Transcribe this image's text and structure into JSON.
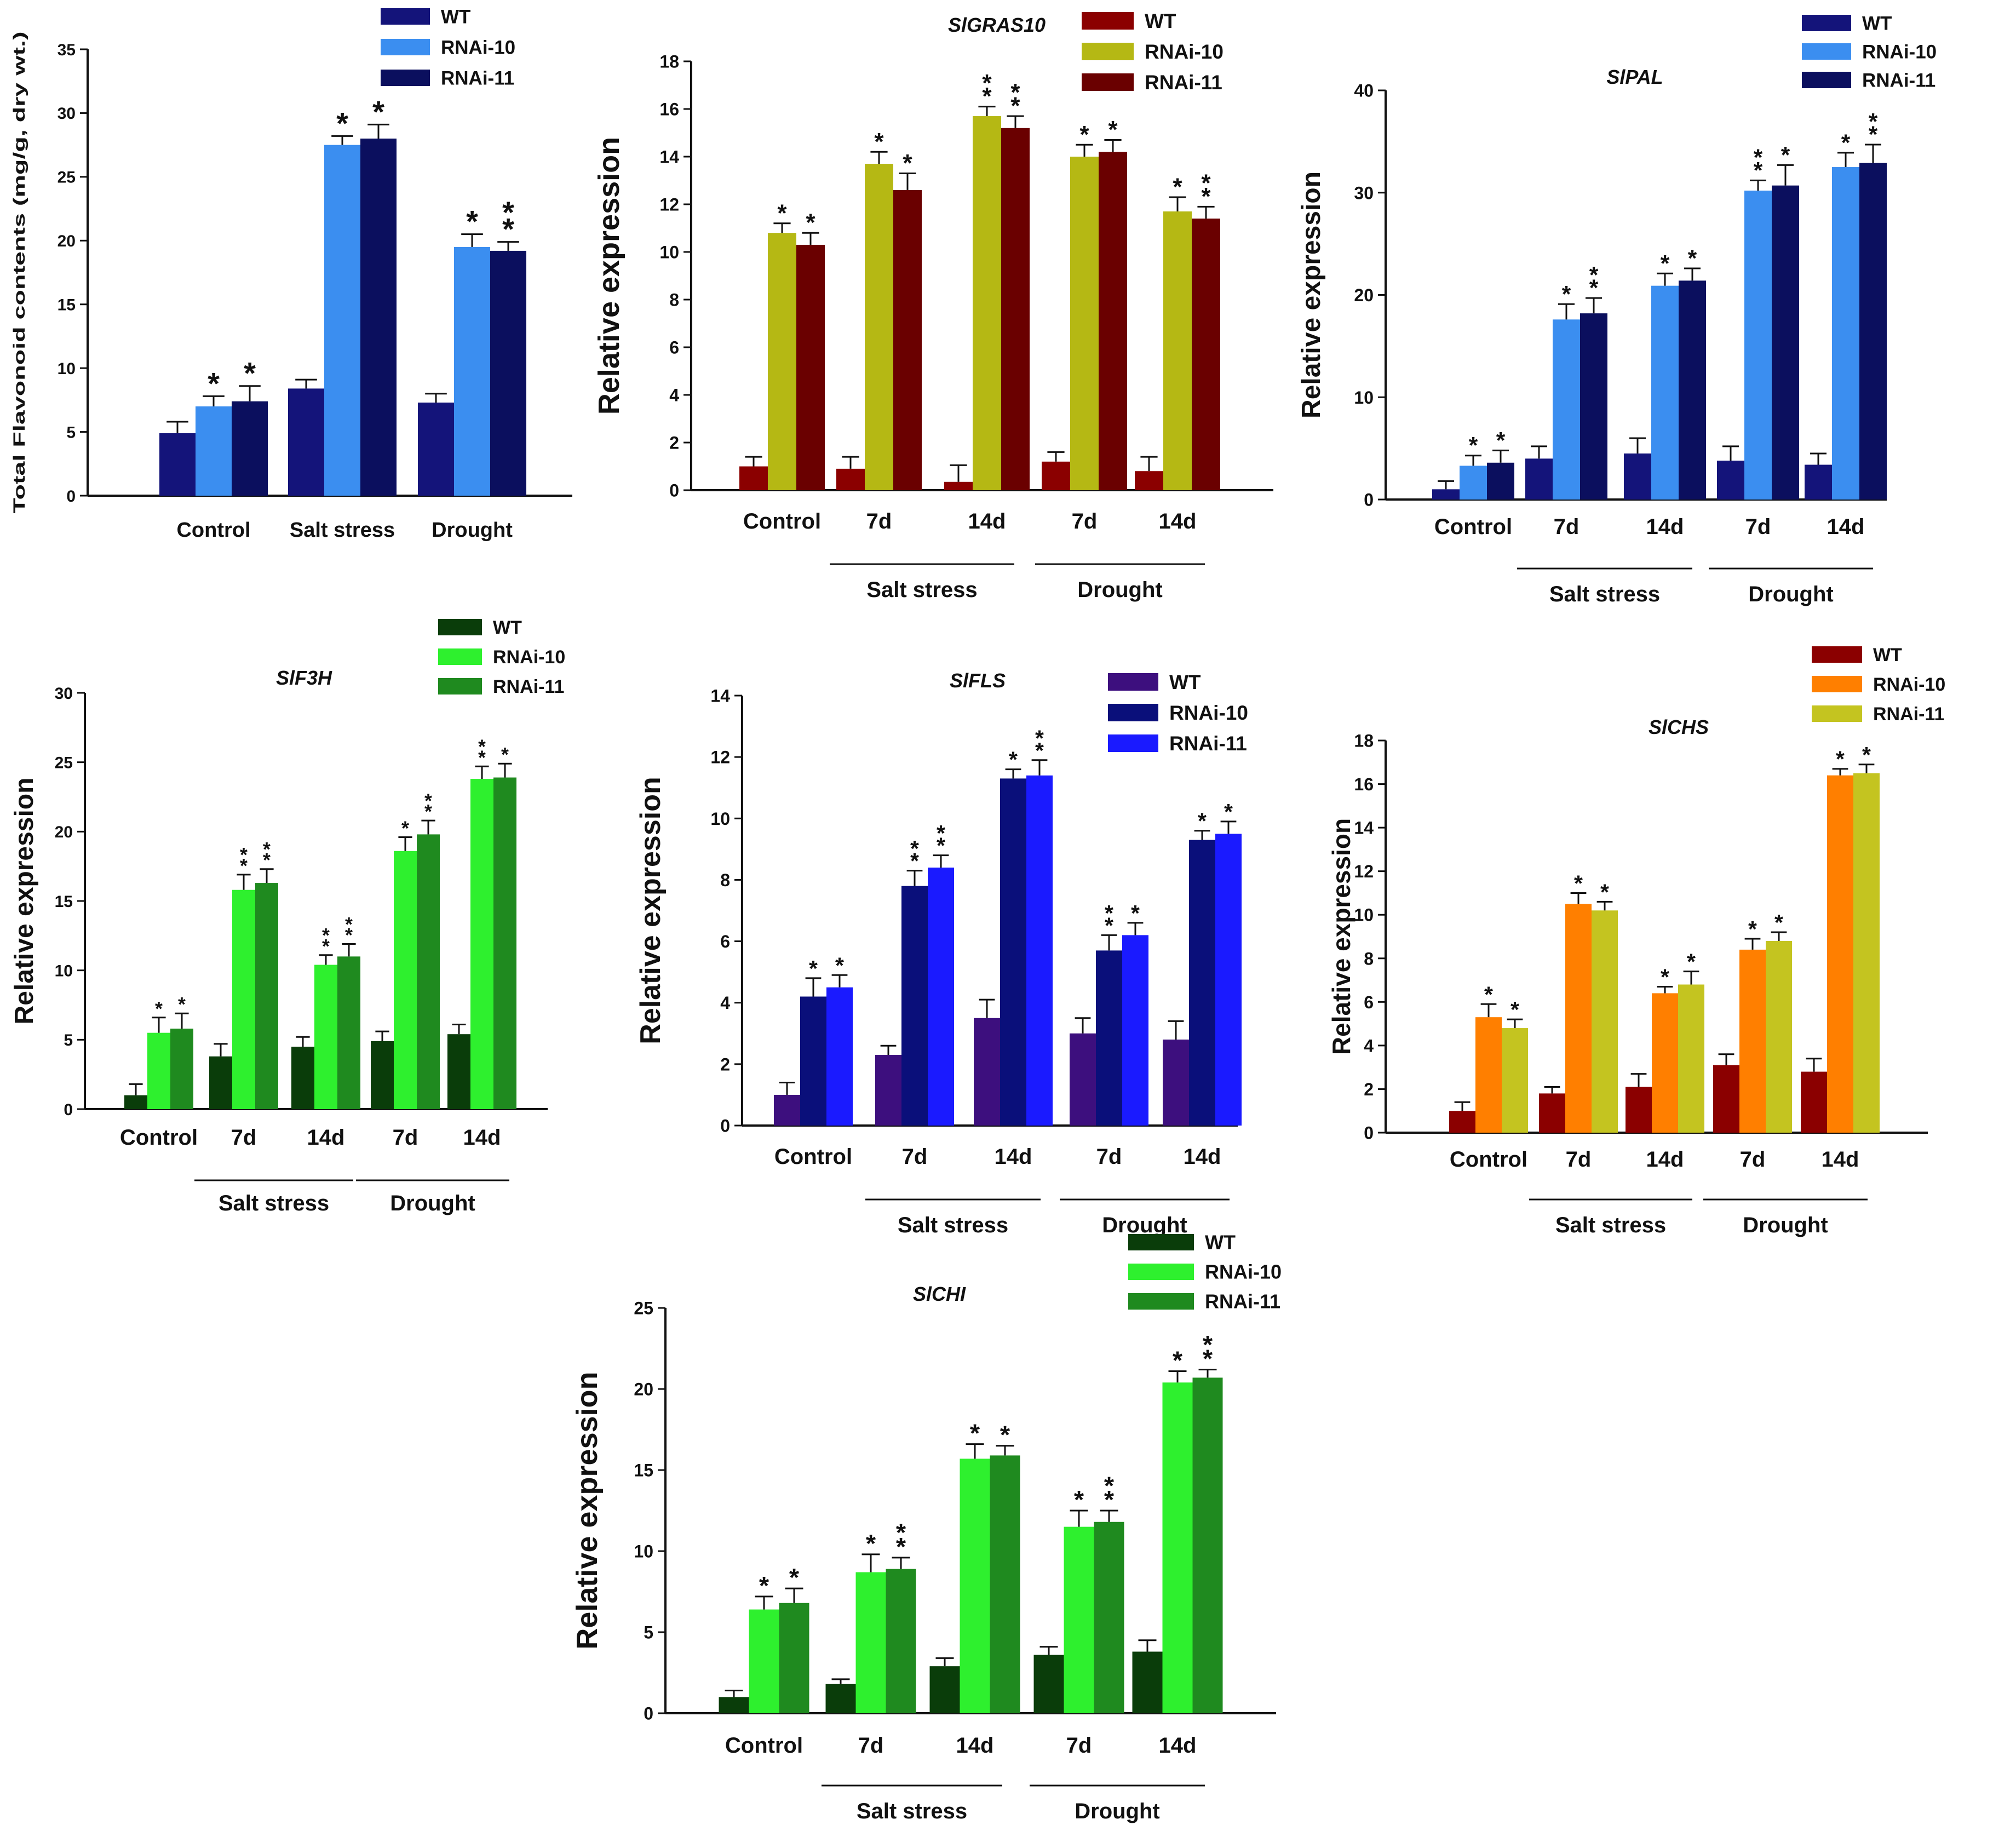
{
  "colors": {
    "blue": [
      "#14147a",
      "#3b8ef0",
      "#0b0f5e"
    ],
    "red": [
      "#8b0000",
      "#b5b814",
      "#6a0000"
    ],
    "green": [
      "#0a3d0a",
      "#2ef02e",
      "#1f8a1f"
    ],
    "fls": [
      "#3d0f7e",
      "#0a0f7a",
      "#1a1aff"
    ],
    "chs": [
      "#8b0000",
      "#ff7f00",
      "#c4c420"
    ]
  },
  "chart_data": [
    {
      "id": "flavonoid",
      "type": "bar",
      "title": "",
      "ylabel": "Total Flavonoid contents (mg/g, dry wt.)",
      "ylim": [
        0,
        35
      ],
      "yticks": [
        "0",
        "5",
        "10",
        "15",
        "20",
        "25",
        "30",
        "35"
      ],
      "categories": [
        "Control",
        "Salt stress",
        "Drought"
      ],
      "groups": [],
      "legend": [
        "WT",
        "RNAi-10",
        "RNAi-11"
      ],
      "palette": "blue",
      "series": [
        {
          "name": "WT",
          "values": [
            4.9,
            8.4,
            7.3
          ],
          "errors": [
            0.9,
            0.7,
            0.7
          ],
          "stars": [
            "",
            "",
            ""
          ]
        },
        {
          "name": "RNAi-10",
          "values": [
            7.0,
            27.5,
            19.5
          ],
          "errors": [
            0.8,
            0.7,
            1.0
          ],
          "stars": [
            "*",
            "*",
            "*"
          ]
        },
        {
          "name": "RNAi-11",
          "values": [
            7.4,
            28.0,
            19.2
          ],
          "errors": [
            1.2,
            1.1,
            0.7
          ],
          "stars": [
            "*",
            "*",
            "**"
          ]
        }
      ]
    },
    {
      "id": "slgras10",
      "type": "bar",
      "title": "SlGRAS10",
      "ylabel": "Relative expression",
      "ylim": [
        0,
        18
      ],
      "yticks": [
        "0",
        "2",
        "4",
        "6",
        "8",
        "10",
        "12",
        "14",
        "16",
        "18"
      ],
      "categories": [
        "Control",
        "7d",
        "14d",
        "7d",
        "14d"
      ],
      "groups": [
        {
          "label": "Salt stress",
          "from": 1,
          "to": 2
        },
        {
          "label": "Drought",
          "from": 3,
          "to": 4
        }
      ],
      "legend": [
        "WT",
        "RNAi-10",
        "RNAi-11"
      ],
      "palette": "red",
      "series": [
        {
          "name": "WT",
          "values": [
            1.0,
            0.9,
            0.35,
            1.2,
            0.8
          ],
          "errors": [
            0.4,
            0.5,
            0.7,
            0.4,
            0.6
          ],
          "stars": [
            "",
            "",
            "",
            "",
            ""
          ]
        },
        {
          "name": "RNAi-10",
          "values": [
            10.8,
            13.7,
            15.7,
            14.0,
            11.7
          ],
          "errors": [
            0.4,
            0.5,
            0.4,
            0.5,
            0.6
          ],
          "stars": [
            "*",
            "*",
            "**",
            "*",
            "*"
          ]
        },
        {
          "name": "RNAi-11",
          "values": [
            10.3,
            12.6,
            15.2,
            14.2,
            11.4
          ],
          "errors": [
            0.5,
            0.7,
            0.5,
            0.5,
            0.5
          ],
          "stars": [
            "*",
            "*",
            "**",
            "*",
            "**"
          ]
        }
      ]
    },
    {
      "id": "slpal",
      "type": "bar",
      "title": "SlPAL",
      "ylabel": "Relative expression",
      "ylim": [
        0,
        40
      ],
      "yticks": [
        "0",
        "10",
        "20",
        "30",
        "40"
      ],
      "categories": [
        "Control",
        "7d",
        "14d",
        "7d",
        "14d"
      ],
      "groups": [
        {
          "label": "Salt stress",
          "from": 1,
          "to": 2
        },
        {
          "label": "Drought",
          "from": 3,
          "to": 4
        }
      ],
      "legend": [
        "WT",
        "RNAi-10",
        "RNAi-11"
      ],
      "palette": "blue",
      "series": [
        {
          "name": "WT",
          "values": [
            1.0,
            4.0,
            4.5,
            3.8,
            3.4
          ],
          "errors": [
            0.8,
            1.2,
            1.5,
            1.4,
            1.1
          ],
          "stars": [
            "",
            "",
            "",
            "",
            ""
          ]
        },
        {
          "name": "RNAi-10",
          "values": [
            3.3,
            17.6,
            20.9,
            30.2,
            32.5
          ],
          "errors": [
            1.0,
            1.5,
            1.2,
            1.0,
            1.4
          ],
          "stars": [
            "*",
            "*",
            "*",
            "**",
            "*"
          ]
        },
        {
          "name": "RNAi-11",
          "values": [
            3.6,
            18.2,
            21.4,
            30.7,
            32.9
          ],
          "errors": [
            1.2,
            1.5,
            1.2,
            2.0,
            1.8
          ],
          "stars": [
            "*",
            "**",
            "*",
            "*",
            "**"
          ]
        }
      ]
    },
    {
      "id": "slf3h",
      "type": "bar",
      "title": "SlF3H",
      "ylabel": "Relative expression",
      "ylim": [
        0,
        30
      ],
      "yticks": [
        "0",
        "5",
        "10",
        "15",
        "20",
        "25",
        "30"
      ],
      "categories": [
        "Control",
        "7d",
        "14d",
        "7d",
        "14d"
      ],
      "groups": [
        {
          "label": "Salt stress",
          "from": 1,
          "to": 2
        },
        {
          "label": "Drought",
          "from": 3,
          "to": 4
        }
      ],
      "legend": [
        "WT",
        "RNAi-10",
        "RNAi-11"
      ],
      "palette": "green",
      "series": [
        {
          "name": "WT",
          "values": [
            1.0,
            3.8,
            4.5,
            4.9,
            5.4
          ],
          "errors": [
            0.8,
            0.9,
            0.7,
            0.7,
            0.7
          ],
          "stars": [
            "",
            "",
            "",
            "",
            ""
          ]
        },
        {
          "name": "RNAi-10",
          "values": [
            5.5,
            15.8,
            10.4,
            18.6,
            23.8
          ],
          "errors": [
            1.1,
            1.1,
            0.7,
            1.0,
            0.9
          ],
          "stars": [
            "*",
            "**",
            "**",
            "*",
            "**"
          ]
        },
        {
          "name": "RNAi-11",
          "values": [
            5.8,
            16.3,
            11.0,
            19.8,
            23.9
          ],
          "errors": [
            1.1,
            1.0,
            0.9,
            1.0,
            1.0
          ],
          "stars": [
            "*",
            "**",
            "**",
            "**",
            "*"
          ]
        }
      ]
    },
    {
      "id": "slfls",
      "type": "bar",
      "title": "SlFLS",
      "ylabel": "Relative expression",
      "ylim": [
        0,
        14
      ],
      "yticks": [
        "0",
        "2",
        "4",
        "6",
        "8",
        "10",
        "12",
        "14"
      ],
      "categories": [
        "Control",
        "7d",
        "14d",
        "7d",
        "14d"
      ],
      "groups": [
        {
          "label": "Salt stress",
          "from": 1,
          "to": 2
        },
        {
          "label": "Drought",
          "from": 3,
          "to": 4
        }
      ],
      "legend": [
        "WT",
        "RNAi-10",
        "RNAi-11"
      ],
      "palette": "fls",
      "series": [
        {
          "name": "WT",
          "values": [
            1.0,
            2.3,
            3.5,
            3.0,
            2.8
          ],
          "errors": [
            0.4,
            0.3,
            0.6,
            0.5,
            0.6
          ],
          "stars": [
            "",
            "",
            "",
            "",
            ""
          ]
        },
        {
          "name": "RNAi-10",
          "values": [
            4.2,
            7.8,
            11.3,
            5.7,
            9.3
          ],
          "errors": [
            0.6,
            0.5,
            0.3,
            0.5,
            0.3
          ],
          "stars": [
            "*",
            "**",
            "*",
            "**",
            "*"
          ]
        },
        {
          "name": "RNAi-11",
          "values": [
            4.5,
            8.4,
            11.4,
            6.2,
            9.5
          ],
          "errors": [
            0.4,
            0.4,
            0.5,
            0.4,
            0.4
          ],
          "stars": [
            "*",
            "**",
            "**",
            "*",
            "*"
          ]
        }
      ]
    },
    {
      "id": "slchs",
      "type": "bar",
      "title": "SlCHS",
      "ylabel": "Relative expression",
      "ylim": [
        0,
        18
      ],
      "yticks": [
        "0",
        "2",
        "4",
        "6",
        "8",
        "10",
        "12",
        "14",
        "16",
        "18"
      ],
      "categories": [
        "Control",
        "7d",
        "14d",
        "7d",
        "14d"
      ],
      "groups": [
        {
          "label": "Salt stress",
          "from": 1,
          "to": 2
        },
        {
          "label": "Drought",
          "from": 3,
          "to": 4
        }
      ],
      "legend": [
        "WT",
        "RNAi-10",
        "RNAi-11"
      ],
      "palette": "chs",
      "series": [
        {
          "name": "WT",
          "values": [
            1.0,
            1.8,
            2.1,
            3.1,
            2.8
          ],
          "errors": [
            0.4,
            0.3,
            0.6,
            0.5,
            0.6
          ],
          "stars": [
            "",
            "",
            "",
            "",
            ""
          ]
        },
        {
          "name": "RNAi-10",
          "values": [
            5.3,
            10.5,
            6.4,
            8.4,
            16.4
          ],
          "errors": [
            0.6,
            0.5,
            0.3,
            0.5,
            0.3
          ],
          "stars": [
            "*",
            "*",
            "*",
            "*",
            "*"
          ]
        },
        {
          "name": "RNAi-11",
          "values": [
            4.8,
            10.2,
            6.8,
            8.8,
            16.5
          ],
          "errors": [
            0.4,
            0.4,
            0.6,
            0.4,
            0.4
          ],
          "stars": [
            "*",
            "*",
            "*",
            "*",
            "*"
          ]
        }
      ]
    },
    {
      "id": "slchi",
      "type": "bar",
      "title": "SlCHI",
      "ylabel": "Relative expression",
      "ylim": [
        0,
        25
      ],
      "yticks": [
        "0",
        "5",
        "10",
        "15",
        "20",
        "25"
      ],
      "categories": [
        "Control",
        "7d",
        "14d",
        "7d",
        "14d"
      ],
      "groups": [
        {
          "label": "Salt stress",
          "from": 1,
          "to": 2
        },
        {
          "label": "Drought",
          "from": 3,
          "to": 4
        }
      ],
      "legend": [
        "WT",
        "RNAi-10",
        "RNAi-11"
      ],
      "palette": "green",
      "series": [
        {
          "name": "WT",
          "values": [
            1.0,
            1.8,
            2.9,
            3.6,
            3.8
          ],
          "errors": [
            0.4,
            0.3,
            0.5,
            0.5,
            0.7
          ],
          "stars": [
            "",
            "",
            "",
            "",
            ""
          ]
        },
        {
          "name": "RNAi-10",
          "values": [
            6.4,
            8.7,
            15.7,
            11.5,
            20.4
          ],
          "errors": [
            0.8,
            1.1,
            0.9,
            1.0,
            0.7
          ],
          "stars": [
            "*",
            "*",
            "*",
            "*",
            "*"
          ]
        },
        {
          "name": "RNAi-11",
          "values": [
            6.8,
            8.9,
            15.9,
            11.8,
            20.7
          ],
          "errors": [
            0.9,
            0.7,
            0.6,
            0.7,
            0.5
          ],
          "stars": [
            "*",
            "**",
            "*",
            "**",
            "**"
          ]
        }
      ]
    }
  ]
}
